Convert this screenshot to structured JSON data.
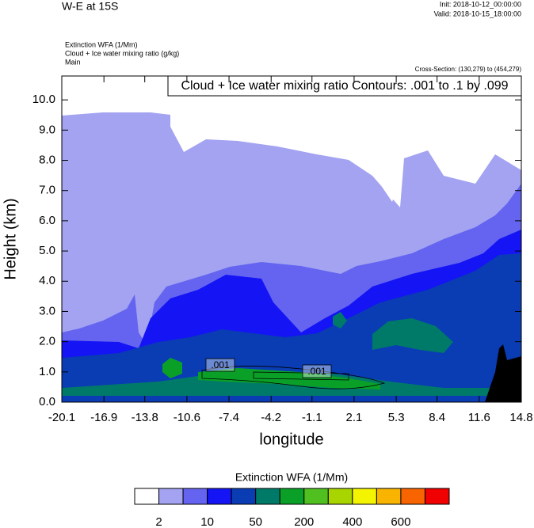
{
  "chart_data": {
    "type": "contour",
    "title": "W-E at 15S",
    "init": "Init: 2018-10-12_00:00:00",
    "valid": "Valid: 2018-10-15_18:00:00",
    "fields": [
      "Extinction WFA   (1/Mm)",
      "Cloud + Ice water mixing ratio   (g/kg)",
      "Main"
    ],
    "cross_section": "Cross-Section: (130,279) to (454,279)",
    "contour_note": "Cloud + Ice water mixing ratio Contours: .001 to .1 by .099",
    "contour_labels": [
      ".001",
      ".001"
    ],
    "x_label": "longitude",
    "y_label": "Height (km)",
    "xlim": [
      -20.1,
      14.8
    ],
    "xticks": [
      -20.1,
      -16.9,
      -13.8,
      -10.6,
      -7.4,
      -4.2,
      -1.1,
      2.1,
      5.3,
      8.4,
      11.6,
      14.8
    ],
    "ylim": [
      0,
      10.79
    ],
    "yticks": [
      {
        "value": 0,
        "label": "0.0"
      },
      {
        "value": 1,
        "label": "1.0"
      },
      {
        "value": 2,
        "label": "2.0"
      },
      {
        "value": 3,
        "label": "3.0"
      },
      {
        "value": 4,
        "label": "4.0"
      },
      {
        "value": 5,
        "label": "5.0"
      },
      {
        "value": 6,
        "label": "6.0"
      },
      {
        "value": 7,
        "label": "7.0"
      },
      {
        "value": 8,
        "label": "8.0"
      },
      {
        "value": 9,
        "label": "9.0"
      },
      {
        "value": 10,
        "label": "10.0"
      }
    ],
    "colorbar": {
      "title": "Extinction WFA  (1/Mm)",
      "colors": [
        "#ffffff",
        "#a3a3f2",
        "#6464f0",
        "#1414f5",
        "#0a3cb4",
        "#007a68",
        "#0aa028",
        "#50c020",
        "#a8d400",
        "#f4f400",
        "#f8b400",
        "#f86400",
        "#f00000"
      ],
      "levels": [
        2,
        null,
        10,
        null,
        50,
        null,
        200,
        null,
        400,
        null,
        600,
        null
      ]
    }
  }
}
